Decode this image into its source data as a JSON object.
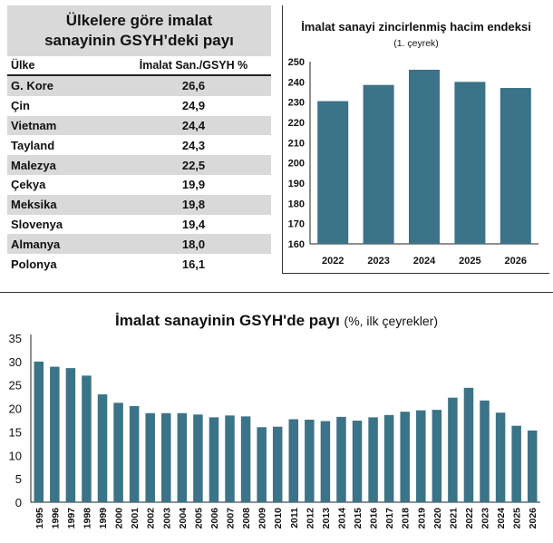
{
  "table": {
    "title_line1": "Ülkelere göre imalat",
    "title_line2": "sanayinin GSYH’deki payı",
    "col1": "Ülke",
    "col2": "İmalat San./GSYH %",
    "rows": [
      {
        "country": "G. Kore",
        "value": "26,6"
      },
      {
        "country": "Çin",
        "value": "24,9"
      },
      {
        "country": "Vietnam",
        "value": "24,4"
      },
      {
        "country": "Tayland",
        "value": "24,3"
      },
      {
        "country": "Malezya",
        "value": "22,5"
      },
      {
        "country": "Çekya",
        "value": "19,9"
      },
      {
        "country": "Meksika",
        "value": "19,8"
      },
      {
        "country": "Slovenya",
        "value": "19,4"
      },
      {
        "country": "Almanya",
        "value": "18,0"
      },
      {
        "country": "Polonya",
        "value": "16,1"
      }
    ]
  },
  "chart_data": [
    {
      "type": "bar",
      "title": "İmalat sanayi zincirlenmiş hacim endeksi",
      "subtitle": "(1. çeyrek)",
      "categories": [
        "2022",
        "2023",
        "2024",
        "2025",
        "2026"
      ],
      "values": [
        230.5,
        238.5,
        246,
        240,
        237
      ],
      "ylim": [
        160,
        250
      ],
      "yticks": [
        160,
        170,
        180,
        190,
        200,
        210,
        220,
        230,
        240,
        250
      ],
      "bar_color": "#3b7388",
      "grid": false
    },
    {
      "type": "bar",
      "title": "İmalat sanayinin GSYH'de payı",
      "subtitle": "(%, ilk çeyrekler)",
      "categories": [
        "1995",
        "1996",
        "1997",
        "1998",
        "1999",
        "2000",
        "2001",
        "2002",
        "2003",
        "2004",
        "2005",
        "2006",
        "2007",
        "2008",
        "2009",
        "2010",
        "2011",
        "2012",
        "2013",
        "2014",
        "2015",
        "2016",
        "2017",
        "2018",
        "2019",
        "2020",
        "2021",
        "2022",
        "2023",
        "2024",
        "2025",
        "2026"
      ],
      "values": [
        30,
        28.9,
        28.6,
        27,
        23,
        21.2,
        20.5,
        19,
        19,
        19,
        18.7,
        18.1,
        18.5,
        18.3,
        16,
        16.1,
        17.7,
        17.6,
        17.3,
        18.2,
        17.4,
        18.1,
        18.6,
        19.3,
        19.6,
        19.7,
        22.3,
        24.4,
        21.7,
        19.1,
        16.3,
        15.3
      ],
      "ylim": [
        0,
        35
      ],
      "yticks": [
        0,
        5,
        10,
        15,
        20,
        25,
        30,
        35
      ],
      "bar_color": "#3b7388",
      "grid": false
    }
  ]
}
